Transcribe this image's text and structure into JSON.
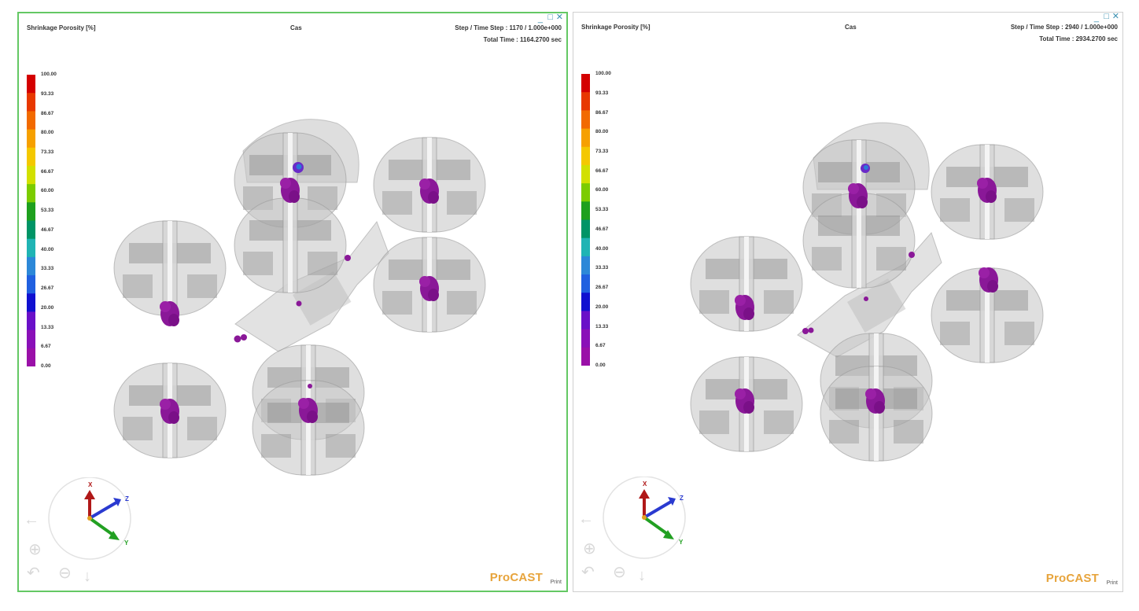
{
  "viewports": [
    {
      "id": "left",
      "active": true,
      "quantity": "Shrinkage Porosity [%]",
      "case_name": "Cas",
      "step_line": "Step / Time Step : 1170 / 1.000e+000",
      "time_line": "Total   Time        : 1164.2700 sec",
      "brand": "ProCAST",
      "brand_sub": "Print",
      "triad": {
        "x": "X",
        "y": "Y",
        "z": "Z"
      }
    },
    {
      "id": "right",
      "active": false,
      "quantity": "Shrinkage Porosity [%]",
      "case_name": "Cas",
      "step_line": "Step / Time Step : 2940 / 1.000e+000",
      "time_line": "Total   Time        : 2934.2700 sec",
      "brand": "ProCAST",
      "brand_sub": "Print",
      "triad": {
        "x": "X",
        "y": "Y",
        "z": "Z"
      }
    }
  ],
  "window_controls": {
    "minimize": "_",
    "maximize": "□",
    "close": "✕"
  },
  "scale": {
    "labels": [
      "100.00",
      "93.33",
      "86.67",
      "80.00",
      "73.33",
      "66.67",
      "60.00",
      "53.33",
      "46.67",
      "40.00",
      "33.33",
      "26.67",
      "20.00",
      "13.33",
      "6.67",
      "0.00"
    ],
    "colors": [
      "#d40000",
      "#e83800",
      "#f26a00",
      "#f6a000",
      "#f4c800",
      "#d2e000",
      "#7ccc00",
      "#1ea01e",
      "#009466",
      "#20b4b4",
      "#2c88d8",
      "#2060e0",
      "#1010d0",
      "#6a10c8",
      "#8a10b8",
      "#9a10a8"
    ]
  },
  "icons": {
    "nav_left": "arrow-left-icon",
    "nav_rotate": "rotate-icon",
    "nav_zoom_in": "zoom-in-icon",
    "nav_zoom_out": "zoom-out-icon",
    "nav_down": "arrow-down-icon"
  },
  "colors": {
    "active_border": "#64c864",
    "porosity_blob": "#8a1898",
    "porosity_hot": "#2a7ad8",
    "part_gray": "#b4b4b4",
    "brand": "#e7a43c"
  }
}
